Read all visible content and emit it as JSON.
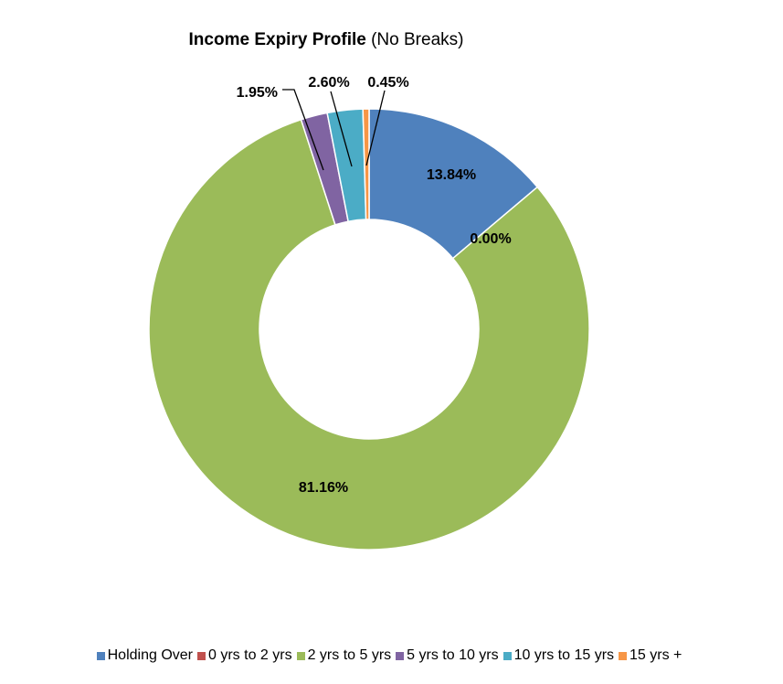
{
  "chart_data": {
    "type": "pie",
    "variant": "doughnut",
    "title_bold": "Income Expiry Profile",
    "title_rest": " (No Breaks)",
    "categories": [
      "Holding Over",
      "0 yrs to 2 yrs",
      "2 yrs to 5 yrs",
      "5 yrs to 10 yrs",
      "10 yrs to 15 yrs",
      "15 yrs +"
    ],
    "values": [
      13.84,
      0.0,
      81.16,
      1.95,
      2.6,
      0.45
    ],
    "labels": [
      "13.84%",
      "0.00%",
      "81.16%",
      "1.95%",
      "2.60%",
      "0.45%"
    ],
    "colors": [
      "#4F81BD",
      "#C0504D",
      "#9BBB59",
      "#8064A2",
      "#4BACC6",
      "#F79646"
    ],
    "legend_position": "bottom"
  }
}
